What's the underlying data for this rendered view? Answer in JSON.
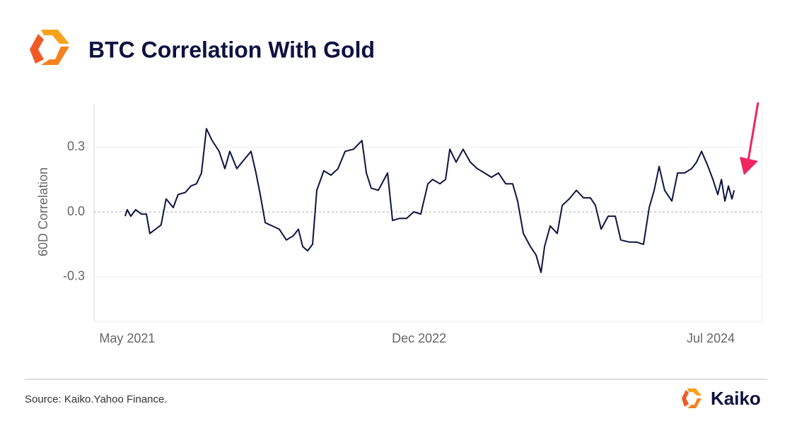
{
  "header": {
    "title": "BTC Correlation With Gold"
  },
  "chart_data": {
    "type": "line",
    "ylabel": "60D Correlation",
    "x": [
      2021.322,
      2021.333,
      2021.352,
      2021.379,
      2021.41,
      2021.437,
      2021.456,
      2021.487,
      2021.517,
      2021.544,
      2021.583,
      2021.609,
      2021.648,
      2021.679,
      2021.709,
      2021.736,
      2021.763,
      2021.794,
      2021.832,
      2021.863,
      2021.89,
      2021.928,
      2021.966,
      2022.005,
      2022.032,
      2022.055,
      2022.082,
      2022.12,
      2022.158,
      2022.197,
      2022.235,
      2022.262,
      2022.285,
      2022.312,
      2022.339,
      2022.362,
      2022.4,
      2022.439,
      2022.477,
      2022.516,
      2022.561,
      2022.607,
      2022.631,
      2022.657,
      2022.696,
      2022.746,
      2022.773,
      2022.811,
      2022.849,
      2022.888,
      2022.926,
      2022.965,
      2022.991,
      2023.03,
      2023.061,
      2023.084,
      2023.118,
      2023.156,
      2023.195,
      2023.233,
      2023.272,
      2023.31,
      2023.348,
      2023.387,
      2023.425,
      2023.452,
      2023.483,
      2023.521,
      2023.552,
      2023.579,
      2023.598,
      2023.629,
      2023.667,
      2023.694,
      2023.732,
      2023.771,
      2023.809,
      2023.847,
      2023.874,
      2023.905,
      2023.943,
      2023.982,
      2024.012,
      2024.059,
      2024.097,
      2024.135,
      2024.166,
      2024.193,
      2024.22,
      2024.25,
      2024.289,
      2024.32,
      2024.358,
      2024.396,
      2024.423,
      2024.45,
      2024.481,
      2024.512,
      2024.538,
      2024.558,
      2024.577,
      2024.596,
      2024.615,
      2024.627
    ],
    "series": [
      {
        "name": "BTC-Gold 60D Correlation",
        "color": "#0f1240",
        "values": [
          -0.02,
          0.01,
          -0.02,
          0.01,
          -0.01,
          -0.01,
          -0.1,
          -0.08,
          -0.06,
          0.06,
          0.02,
          0.08,
          0.09,
          0.12,
          0.13,
          0.18,
          0.385,
          0.33,
          0.28,
          0.2,
          0.28,
          0.2,
          0.24,
          0.28,
          0.18,
          0.08,
          -0.05,
          -0.065,
          -0.08,
          -0.13,
          -0.11,
          -0.08,
          -0.16,
          -0.18,
          -0.15,
          0.1,
          0.19,
          0.17,
          0.2,
          0.28,
          0.29,
          0.33,
          0.18,
          0.11,
          0.1,
          0.18,
          -0.04,
          -0.03,
          -0.03,
          0.0,
          -0.01,
          0.13,
          0.15,
          0.13,
          0.15,
          0.29,
          0.23,
          0.29,
          0.23,
          0.2,
          0.18,
          0.16,
          0.18,
          0.13,
          0.13,
          0.05,
          -0.1,
          -0.16,
          -0.2,
          -0.28,
          -0.16,
          -0.065,
          -0.1,
          0.03,
          0.06,
          0.1,
          0.065,
          0.065,
          0.03,
          -0.08,
          -0.02,
          -0.02,
          -0.13,
          -0.14,
          -0.14,
          -0.15,
          0.02,
          0.1,
          0.21,
          0.1,
          0.05,
          0.18,
          0.18,
          0.2,
          0.23,
          0.28,
          0.22,
          0.15,
          0.08,
          0.15,
          0.05,
          0.12,
          0.06,
          0.1
        ]
      }
    ],
    "xlim": [
      2021.153,
      2024.776
    ],
    "xticks": [
      {
        "value": 2021.333,
        "label": "May 2021"
      },
      {
        "value": 2022.917,
        "label": "Dec 2022"
      },
      {
        "value": 2024.5,
        "label": "Jul 2024"
      }
    ],
    "ylim": [
      -0.5,
      0.5
    ],
    "yticks": [
      -0.3,
      {
        "value": 0,
        "label": "0.0"
      },
      0.3
    ],
    "grid": true
  },
  "footer": {
    "source": "Source: Kaiko.Yahoo Finance.",
    "brand": "Kaiko"
  }
}
